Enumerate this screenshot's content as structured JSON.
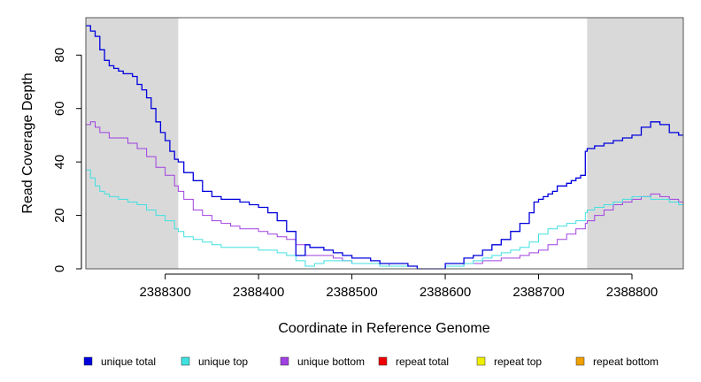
{
  "chart_data": {
    "type": "line",
    "title": "",
    "xlabel": "Coordinate in Reference Genome",
    "ylabel": "Read Coverage Depth",
    "xlim": [
      2388215,
      2388855
    ],
    "ylim": [
      0,
      94
    ],
    "x_ticks": [
      2388300,
      2388400,
      2388500,
      2388600,
      2388700,
      2388800
    ],
    "x_tick_labels": [
      "2388300",
      "2388400",
      "2388500",
      "2388600",
      "2388700",
      "2388800"
    ],
    "y_ticks": [
      0,
      20,
      40,
      60,
      80
    ],
    "y_tick_labels": [
      "0",
      "20",
      "40",
      "60",
      "80"
    ],
    "shaded_regions": [
      [
        2388215,
        2388314
      ],
      [
        2388752,
        2388855
      ]
    ],
    "shade_color": "#d9d9d9",
    "series": [
      {
        "name": "unique total",
        "color": "#0000dd",
        "x": [
          2388215,
          2388220,
          2388225,
          2388230,
          2388235,
          2388240,
          2388245,
          2388250,
          2388255,
          2388260,
          2388265,
          2388270,
          2388275,
          2388280,
          2388285,
          2388290,
          2388295,
          2388300,
          2388305,
          2388310,
          2388314,
          2388320,
          2388330,
          2388340,
          2388350,
          2388360,
          2388370,
          2388380,
          2388390,
          2388400,
          2388410,
          2388420,
          2388430,
          2388440,
          2388445,
          2388450,
          2388455,
          2388460,
          2388470,
          2388480,
          2388490,
          2388500,
          2388510,
          2388520,
          2388530,
          2388540,
          2388550,
          2388560,
          2388570,
          2388580,
          2388590,
          2388600,
          2388610,
          2388620,
          2388630,
          2388640,
          2388650,
          2388660,
          2388670,
          2388680,
          2388690,
          2388695,
          2388700,
          2388705,
          2388710,
          2388715,
          2388720,
          2388725,
          2388730,
          2388735,
          2388740,
          2388745,
          2388750,
          2388752,
          2388760,
          2388770,
          2388780,
          2388790,
          2388800,
          2388810,
          2388820,
          2388830,
          2388840,
          2388850,
          2388855
        ],
        "values": [
          91,
          89,
          87,
          82,
          78,
          76,
          75,
          74,
          73,
          73,
          72,
          69,
          67,
          64,
          60,
          55,
          51,
          48,
          44,
          41,
          40,
          36,
          33,
          29,
          27,
          26,
          26,
          25,
          24,
          23,
          21,
          18,
          14,
          5,
          5,
          9,
          8,
          8,
          7,
          6,
          5,
          4,
          4,
          3,
          2,
          2,
          2,
          1,
          0,
          0,
          0,
          2,
          2,
          4,
          5,
          7,
          9,
          11,
          14,
          17,
          21,
          25,
          26,
          27,
          28,
          29,
          31,
          31,
          32,
          33,
          34,
          35,
          44,
          45,
          46,
          47,
          48,
          49,
          50,
          53,
          55,
          54,
          51,
          50,
          50
        ]
      },
      {
        "name": "unique top",
        "color": "#40e0e0",
        "x": [
          2388215,
          2388220,
          2388225,
          2388230,
          2388235,
          2388240,
          2388250,
          2388260,
          2388270,
          2388280,
          2388290,
          2388300,
          2388310,
          2388314,
          2388320,
          2388330,
          2388340,
          2388350,
          2388360,
          2388370,
          2388380,
          2388390,
          2388400,
          2388410,
          2388420,
          2388430,
          2388440,
          2388450,
          2388460,
          2388470,
          2388480,
          2388490,
          2388500,
          2388510,
          2388520,
          2388530,
          2388540,
          2388550,
          2388560,
          2388570,
          2388580,
          2388590,
          2388600,
          2388610,
          2388620,
          2388630,
          2388640,
          2388650,
          2388660,
          2388670,
          2388680,
          2388690,
          2388700,
          2388710,
          2388720,
          2388730,
          2388740,
          2388750,
          2388752,
          2388760,
          2388770,
          2388780,
          2388790,
          2388800,
          2388810,
          2388820,
          2388830,
          2388840,
          2388850,
          2388855
        ],
        "values": [
          37,
          34,
          31,
          29,
          28,
          27,
          26,
          25,
          24,
          22,
          20,
          18,
          15,
          14,
          12,
          11,
          10,
          9,
          8,
          8,
          8,
          8,
          7,
          7,
          6,
          5,
          3,
          1,
          2,
          3,
          3,
          3,
          2,
          2,
          2,
          1,
          1,
          1,
          1,
          0,
          0,
          0,
          1,
          1,
          2,
          3,
          4,
          5,
          6,
          7,
          8,
          10,
          13,
          15,
          16,
          17,
          18,
          21,
          22,
          23,
          24,
          25,
          26,
          27,
          27,
          26,
          26,
          25,
          24,
          24
        ]
      },
      {
        "name": "unique bottom",
        "color": "#a040e0",
        "x": [
          2388215,
          2388220,
          2388225,
          2388230,
          2388240,
          2388250,
          2388260,
          2388270,
          2388280,
          2388290,
          2388300,
          2388310,
          2388314,
          2388320,
          2388330,
          2388340,
          2388350,
          2388360,
          2388370,
          2388380,
          2388390,
          2388400,
          2388410,
          2388420,
          2388430,
          2388440,
          2388450,
          2388460,
          2388470,
          2388480,
          2388490,
          2388500,
          2388510,
          2388520,
          2388530,
          2388540,
          2388550,
          2388560,
          2388570,
          2388580,
          2388590,
          2388600,
          2388610,
          2388620,
          2388630,
          2388640,
          2388650,
          2388660,
          2388670,
          2388680,
          2388690,
          2388700,
          2388710,
          2388720,
          2388730,
          2388740,
          2388750,
          2388752,
          2388760,
          2388770,
          2388780,
          2388790,
          2388800,
          2388810,
          2388820,
          2388830,
          2388840,
          2388850,
          2388855
        ],
        "values": [
          54,
          55,
          53,
          51,
          49,
          49,
          47,
          45,
          42,
          38,
          35,
          31,
          29,
          26,
          22,
          20,
          18,
          17,
          16,
          15,
          15,
          14,
          13,
          12,
          11,
          9,
          5,
          5,
          5,
          4,
          3,
          2,
          2,
          2,
          2,
          1,
          1,
          1,
          0,
          0,
          0,
          1,
          1,
          2,
          2,
          3,
          3,
          4,
          4,
          5,
          6,
          7,
          9,
          11,
          13,
          15,
          17,
          18,
          20,
          22,
          24,
          25,
          26,
          27,
          28,
          27,
          26,
          25,
          26
        ]
      },
      {
        "name": "repeat total",
        "color": "#ee0000",
        "x": [
          2388215,
          2388855
        ],
        "values": [
          0,
          0
        ]
      },
      {
        "name": "repeat top",
        "color": "#eeee00",
        "x": [
          2388215,
          2388855
        ],
        "values": [
          0,
          0
        ]
      },
      {
        "name": "repeat bottom",
        "color": "#f0a000",
        "x": [
          2388215,
          2388855
        ],
        "values": [
          0,
          0
        ]
      }
    ],
    "legend_position": "bottom"
  }
}
